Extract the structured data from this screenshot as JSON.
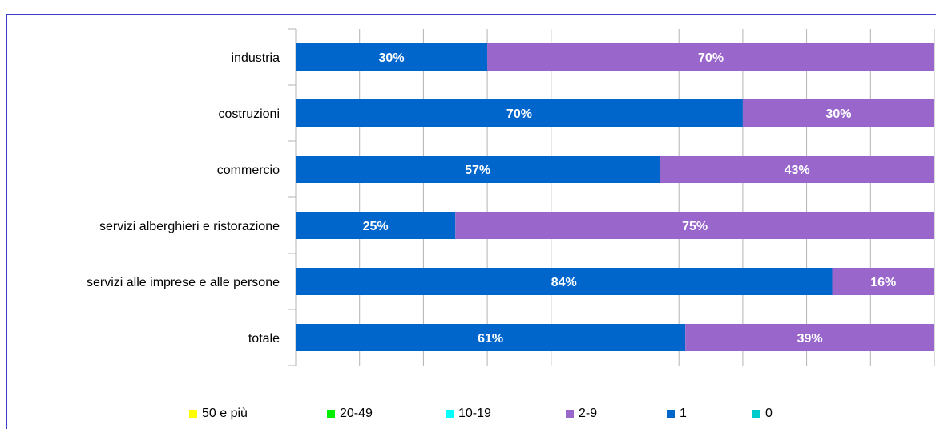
{
  "header": {
    "text": ""
  },
  "chart_data": {
    "type": "bar",
    "orientation": "horizontal",
    "stacked": true,
    "percent": true,
    "categories": [
      "industria",
      "costruzioni",
      "commercio",
      "servizi alberghieri e ristorazione",
      "servizi alle imprese e alle persone",
      "totale"
    ],
    "series": [
      {
        "name": "1",
        "color": "#0066cc",
        "values": [
          30,
          70,
          57,
          25,
          84,
          61
        ],
        "labels": [
          "30%",
          "70%",
          "57%",
          "25%",
          "84%",
          "61%"
        ]
      },
      {
        "name": "2-9",
        "color": "#9966cc",
        "values": [
          70,
          30,
          43,
          75,
          16,
          39
        ],
        "labels": [
          "70%",
          "30%",
          "43%",
          "75%",
          "16%",
          "39%"
        ]
      }
    ],
    "xlim": [
      0,
      100
    ],
    "grid": true,
    "legend_position": "bottom",
    "legend": [
      {
        "name": "50 e più",
        "color": "#ffff00"
      },
      {
        "name": "20-49",
        "color": "#00ee00"
      },
      {
        "name": "10-19",
        "color": "#00ffff"
      },
      {
        "name": "2-9",
        "color": "#9966cc"
      },
      {
        "name": "1",
        "color": "#0066cc"
      },
      {
        "name": "0",
        "color": "#00cccc"
      }
    ]
  }
}
